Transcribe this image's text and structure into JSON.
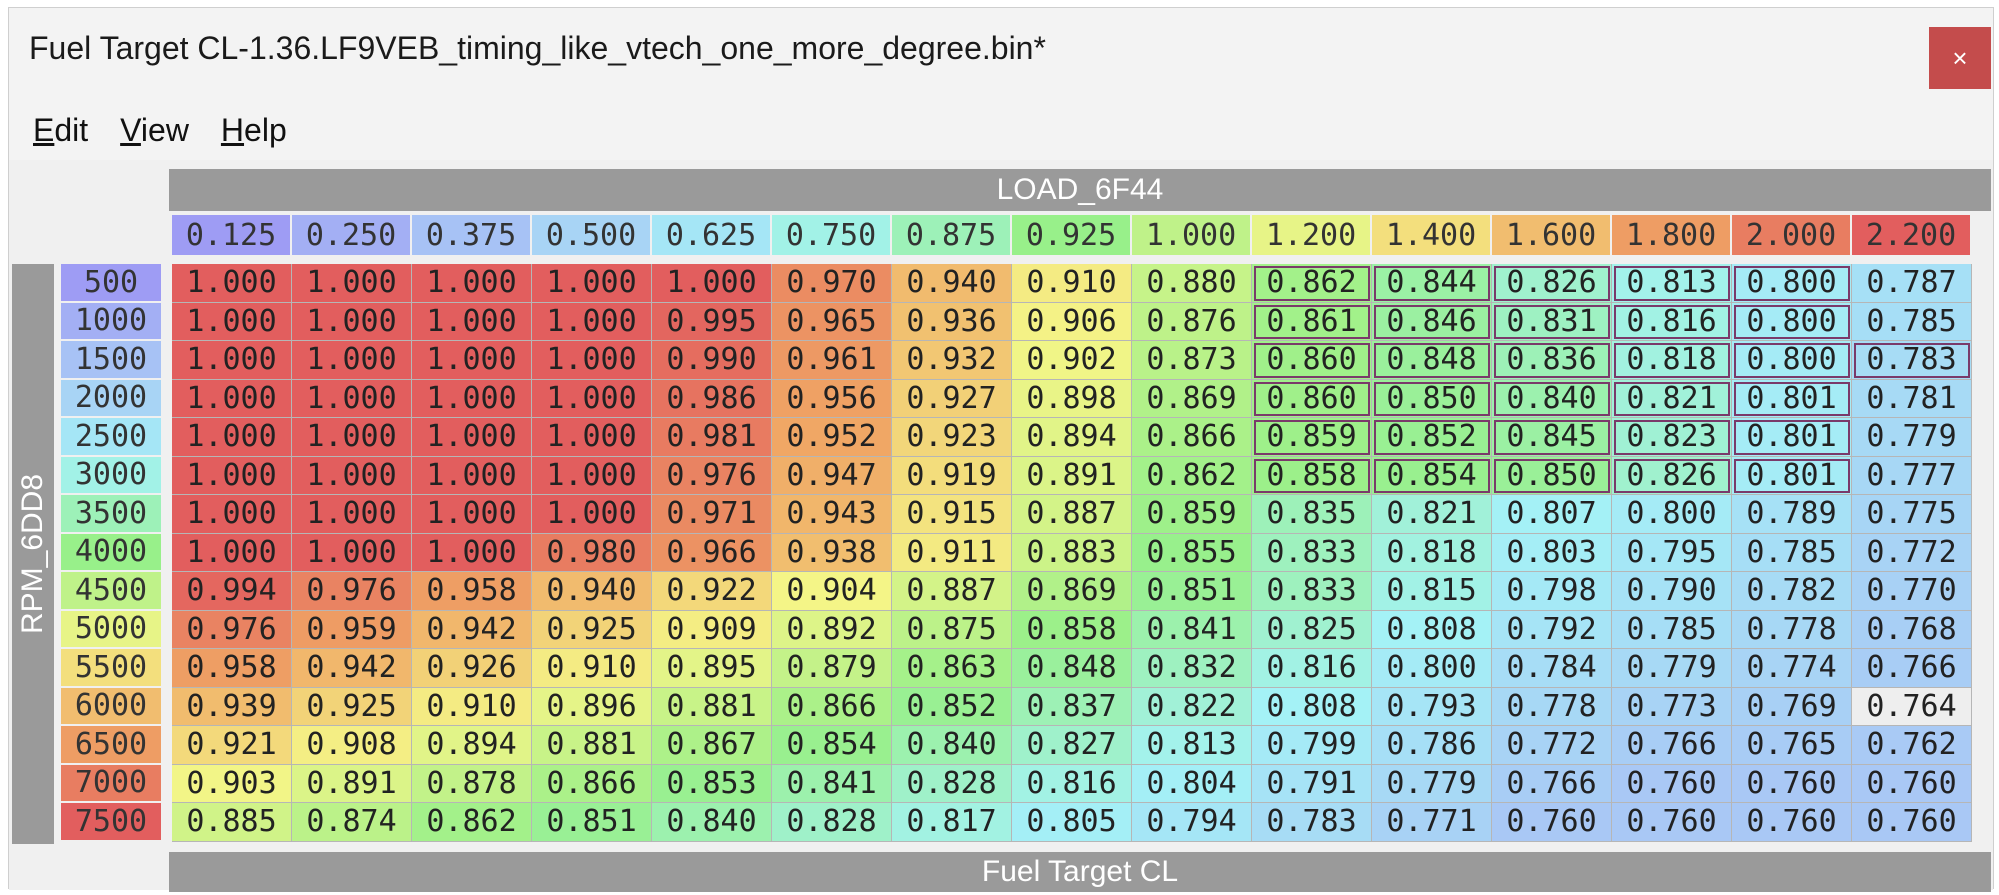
{
  "window": {
    "title": "Fuel Target CL-1.36.LF9VEB_timing_like_vtech_one_more_degree.bin*",
    "close_glyph": "×",
    "close_color": "#c44c4c"
  },
  "menu": {
    "items": [
      {
        "key": "E",
        "rest": "dit"
      },
      {
        "key": "V",
        "rest": "iew"
      },
      {
        "key": "H",
        "rest": "elp"
      }
    ]
  },
  "table": {
    "x_axis_name": "LOAD_6F44",
    "y_axis_name": "RPM_6DD8",
    "footer_title": "Fuel Target CL",
    "columns": [
      "0.125",
      "0.250",
      "0.375",
      "0.500",
      "0.625",
      "0.750",
      "0.875",
      "0.925",
      "1.000",
      "1.200",
      "1.400",
      "1.600",
      "1.800",
      "2.000",
      "2.200"
    ],
    "rows": [
      "500",
      "1000",
      "1500",
      "2000",
      "2500",
      "3000",
      "3500",
      "4000",
      "4500",
      "5000",
      "5500",
      "6000",
      "6500",
      "7000",
      "7500"
    ],
    "values": [
      [
        "1.000",
        "1.000",
        "1.000",
        "1.000",
        "1.000",
        "0.970",
        "0.940",
        "0.910",
        "0.880",
        "0.862",
        "0.844",
        "0.826",
        "0.813",
        "0.800",
        "0.787"
      ],
      [
        "1.000",
        "1.000",
        "1.000",
        "1.000",
        "0.995",
        "0.965",
        "0.936",
        "0.906",
        "0.876",
        "0.861",
        "0.846",
        "0.831",
        "0.816",
        "0.800",
        "0.785"
      ],
      [
        "1.000",
        "1.000",
        "1.000",
        "1.000",
        "0.990",
        "0.961",
        "0.932",
        "0.902",
        "0.873",
        "0.860",
        "0.848",
        "0.836",
        "0.818",
        "0.800",
        "0.783"
      ],
      [
        "1.000",
        "1.000",
        "1.000",
        "1.000",
        "0.986",
        "0.956",
        "0.927",
        "0.898",
        "0.869",
        "0.860",
        "0.850",
        "0.840",
        "0.821",
        "0.801",
        "0.781"
      ],
      [
        "1.000",
        "1.000",
        "1.000",
        "1.000",
        "0.981",
        "0.952",
        "0.923",
        "0.894",
        "0.866",
        "0.859",
        "0.852",
        "0.845",
        "0.823",
        "0.801",
        "0.779"
      ],
      [
        "1.000",
        "1.000",
        "1.000",
        "1.000",
        "0.976",
        "0.947",
        "0.919",
        "0.891",
        "0.862",
        "0.858",
        "0.854",
        "0.850",
        "0.826",
        "0.801",
        "0.777"
      ],
      [
        "1.000",
        "1.000",
        "1.000",
        "1.000",
        "0.971",
        "0.943",
        "0.915",
        "0.887",
        "0.859",
        "0.835",
        "0.821",
        "0.807",
        "0.800",
        "0.789",
        "0.775"
      ],
      [
        "1.000",
        "1.000",
        "1.000",
        "0.980",
        "0.966",
        "0.938",
        "0.911",
        "0.883",
        "0.855",
        "0.833",
        "0.818",
        "0.803",
        "0.795",
        "0.785",
        "0.772"
      ],
      [
        "0.994",
        "0.976",
        "0.958",
        "0.940",
        "0.922",
        "0.904",
        "0.887",
        "0.869",
        "0.851",
        "0.833",
        "0.815",
        "0.798",
        "0.790",
        "0.782",
        "0.770"
      ],
      [
        "0.976",
        "0.959",
        "0.942",
        "0.925",
        "0.909",
        "0.892",
        "0.875",
        "0.858",
        "0.841",
        "0.825",
        "0.808",
        "0.792",
        "0.785",
        "0.778",
        "0.768"
      ],
      [
        "0.958",
        "0.942",
        "0.926",
        "0.910",
        "0.895",
        "0.879",
        "0.863",
        "0.848",
        "0.832",
        "0.816",
        "0.800",
        "0.784",
        "0.779",
        "0.774",
        "0.766"
      ],
      [
        "0.939",
        "0.925",
        "0.910",
        "0.896",
        "0.881",
        "0.866",
        "0.852",
        "0.837",
        "0.822",
        "0.808",
        "0.793",
        "0.778",
        "0.773",
        "0.769",
        "0.764"
      ],
      [
        "0.921",
        "0.908",
        "0.894",
        "0.881",
        "0.867",
        "0.854",
        "0.840",
        "0.827",
        "0.813",
        "0.799",
        "0.786",
        "0.772",
        "0.766",
        "0.765",
        "0.762"
      ],
      [
        "0.903",
        "0.891",
        "0.878",
        "0.866",
        "0.853",
        "0.841",
        "0.828",
        "0.816",
        "0.804",
        "0.791",
        "0.779",
        "0.766",
        "0.760",
        "0.760",
        "0.760"
      ],
      [
        "0.885",
        "0.874",
        "0.862",
        "0.851",
        "0.840",
        "0.828",
        "0.817",
        "0.805",
        "0.794",
        "0.783",
        "0.771",
        "0.760",
        "0.760",
        "0.760",
        "0.760"
      ]
    ],
    "selected_cells": [
      [
        0,
        9
      ],
      [
        0,
        10
      ],
      [
        0,
        11
      ],
      [
        0,
        12
      ],
      [
        0,
        13
      ],
      [
        1,
        9
      ],
      [
        1,
        10
      ],
      [
        1,
        11
      ],
      [
        1,
        12
      ],
      [
        1,
        13
      ],
      [
        2,
        9
      ],
      [
        2,
        10
      ],
      [
        2,
        11
      ],
      [
        2,
        12
      ],
      [
        2,
        13
      ],
      [
        2,
        14
      ],
      [
        3,
        9
      ],
      [
        3,
        10
      ],
      [
        3,
        11
      ],
      [
        3,
        12
      ],
      [
        3,
        13
      ],
      [
        4,
        9
      ],
      [
        4,
        10
      ],
      [
        4,
        11
      ],
      [
        4,
        12
      ],
      [
        4,
        13
      ],
      [
        5,
        9
      ],
      [
        5,
        10
      ],
      [
        5,
        11
      ],
      [
        5,
        12
      ],
      [
        5,
        13
      ]
    ],
    "highlight_cell": [
      11,
      14
    ],
    "highlight_color": "#eeeeee",
    "palette": {
      "low": "#a9c8f5",
      "cyan": "#a4f2f6",
      "green": "#98f08a",
      "yellow": "#f4f587",
      "orange": "#f0a765",
      "red": "#e25e5e",
      "violet": "#9e9cf4"
    }
  }
}
